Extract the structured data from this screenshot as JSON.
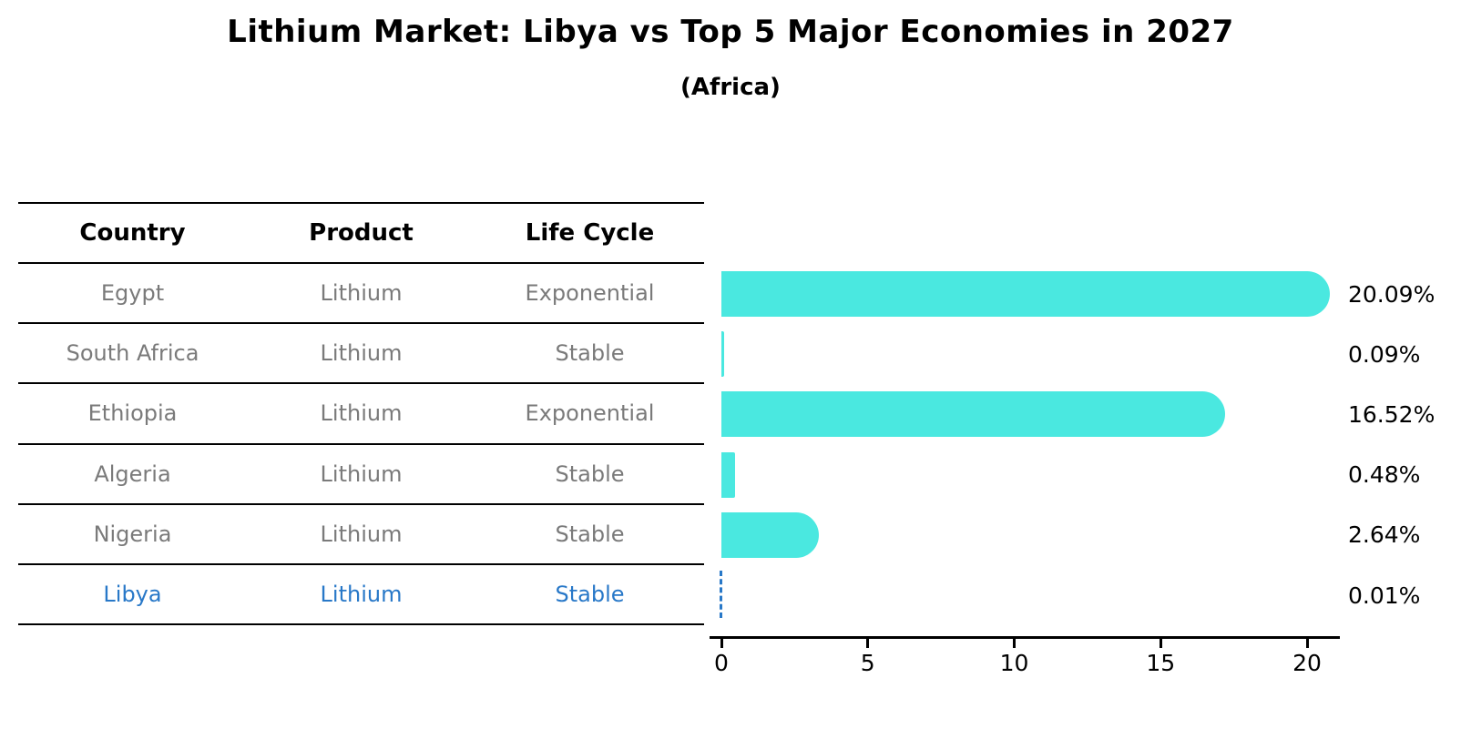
{
  "title": "Lithium Market: Libya vs Top 5 Major Economies in 2027",
  "subtitle": "(Africa)",
  "table": {
    "headers": [
      "Country",
      "Product",
      "Life Cycle"
    ],
    "rows": [
      {
        "country": "Egypt",
        "product": "Lithium",
        "life_cycle": "Exponential",
        "highlight": false
      },
      {
        "country": "South Africa",
        "product": "Lithium",
        "life_cycle": "Stable",
        "highlight": false
      },
      {
        "country": "Ethiopia",
        "product": "Lithium",
        "life_cycle": "Exponential",
        "highlight": false
      },
      {
        "country": "Algeria",
        "product": "Lithium",
        "life_cycle": "Stable",
        "highlight": false
      },
      {
        "country": "Nigeria",
        "product": "Lithium",
        "life_cycle": "Stable",
        "highlight": true
      },
      {
        "country": "Libya",
        "product": "Lithium",
        "life_cycle": "Stable",
        "highlight": true
      }
    ]
  },
  "chart_data": {
    "type": "bar",
    "orientation": "horizontal",
    "title": "Lithium Market: Libya vs Top 5 Major Economies in 2027",
    "subtitle": "(Africa)",
    "categories": [
      "Egypt",
      "South Africa",
      "Ethiopia",
      "Algeria",
      "Nigeria",
      "Libya"
    ],
    "values": [
      20.09,
      0.09,
      16.52,
      0.48,
      2.64,
      0.01
    ],
    "value_labels": [
      "20.09%",
      "0.09%",
      "16.52%",
      "0.48%",
      "2.64%",
      "0.01%"
    ],
    "x_ticks": [
      0,
      5,
      10,
      15,
      20
    ],
    "xlim": [
      0,
      21
    ],
    "grid": false,
    "legend": false,
    "bar_color": "#4ae8e0",
    "highlight_country": "Libya",
    "highlight_color": "#2878c8",
    "highlight_bar_style": "dashed"
  },
  "colors": {
    "bar": "#4ae8e0",
    "accent_blue": "#2878c8",
    "table_body_text": "#7a7a7a",
    "heading_text": "#000000"
  }
}
